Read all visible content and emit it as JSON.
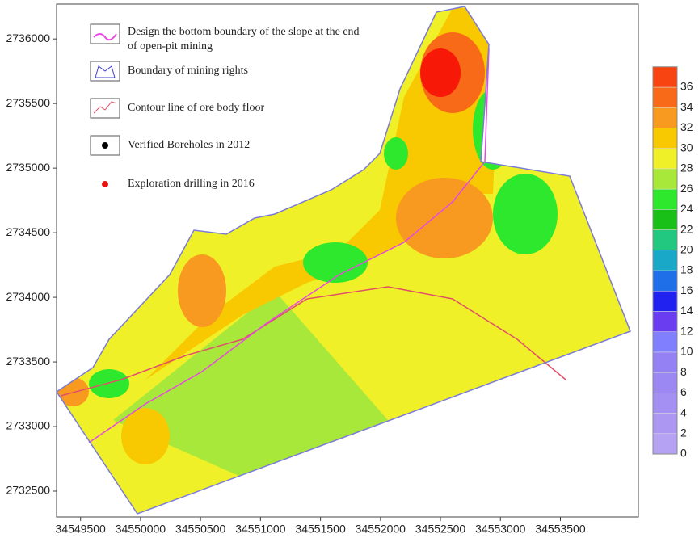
{
  "map": {
    "legend": [
      "Design the bottom boundary of the slope at the end of open-pit mining",
      "Boundary of mining rights",
      "Contour line of ore body floor",
      "Verified Boreholes in 2012",
      "Exploration drilling in 2016"
    ],
    "xlim": [
      34549300,
      34554150
    ],
    "ylim": [
      2732300,
      2736270
    ],
    "xticks": [
      34549500,
      34550000,
      34550500,
      34551000,
      34551500,
      34552000,
      34552500,
      34553000,
      34553500
    ],
    "yticks": [
      2732500,
      2733000,
      2733500,
      2734000,
      2734500,
      2735000,
      2735500,
      2736000
    ],
    "colorbar": {
      "ticks": [
        0,
        2,
        4,
        6,
        8,
        10,
        12,
        14,
        16,
        18,
        20,
        22,
        24,
        26,
        28,
        30,
        32,
        34,
        36
      ],
      "colors": [
        "#b6a2f2",
        "#ac98f2",
        "#a48ff2",
        "#9c88f2",
        "#9482f4",
        "#8080ff",
        "#6a3df0",
        "#2222f0",
        "#1f6fe8",
        "#1aa8c8",
        "#22c880",
        "#18c018",
        "#2ee82e",
        "#a8e83a",
        "#f0f028",
        "#f8c800",
        "#f89a20",
        "#f86a18",
        "#f84410"
      ],
      "top_color": "#f81808"
    }
  }
}
